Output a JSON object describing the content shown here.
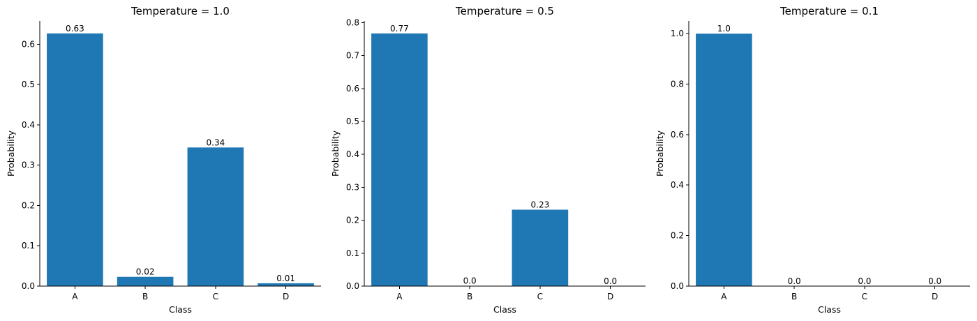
{
  "chart_data": [
    {
      "type": "bar",
      "title": "Temperature = 1.0",
      "xlabel": "Class",
      "ylabel": "Probability",
      "categories": [
        "A",
        "B",
        "C",
        "D"
      ],
      "values": [
        0.627,
        0.023,
        0.344,
        0.007
      ],
      "value_labels": [
        "0.63",
        "0.02",
        "0.34",
        "0.01"
      ],
      "yticks": [
        0.0,
        0.1,
        0.2,
        0.3,
        0.4,
        0.5,
        0.6
      ],
      "ytick_labels": [
        "0.0",
        "0.1",
        "0.2",
        "0.3",
        "0.4",
        "0.5",
        "0.6"
      ],
      "ylim": [
        0,
        0.658
      ],
      "bar_color": "#1f77b4",
      "grid": false,
      "legend": "none"
    },
    {
      "type": "bar",
      "title": "Temperature = 0.5",
      "xlabel": "Class",
      "ylabel": "Probability",
      "categories": [
        "A",
        "B",
        "C",
        "D"
      ],
      "values": [
        0.767,
        0.001,
        0.232,
        0.0
      ],
      "value_labels": [
        "0.77",
        "0.0",
        "0.23",
        "0.0"
      ],
      "yticks": [
        0.0,
        0.1,
        0.2,
        0.3,
        0.4,
        0.5,
        0.6,
        0.7,
        0.8
      ],
      "ytick_labels": [
        "0.0",
        "0.1",
        "0.2",
        "0.3",
        "0.4",
        "0.5",
        "0.6",
        "0.7",
        "0.8"
      ],
      "ylim": [
        0,
        0.805
      ],
      "bar_color": "#1f77b4",
      "grid": false,
      "legend": "none"
    },
    {
      "type": "bar",
      "title": "Temperature = 0.1",
      "xlabel": "Class",
      "ylabel": "Probability",
      "categories": [
        "A",
        "B",
        "C",
        "D"
      ],
      "values": [
        0.9996,
        0.0,
        0.0004,
        0.0
      ],
      "value_labels": [
        "1.0",
        "0.0",
        "0.0",
        "0.0"
      ],
      "yticks": [
        0.0,
        0.2,
        0.4,
        0.6,
        0.8,
        1.0
      ],
      "ytick_labels": [
        "0.0",
        "0.2",
        "0.4",
        "0.6",
        "0.8",
        "1.0"
      ],
      "ylim": [
        0,
        1.05
      ],
      "bar_color": "#1f77b4",
      "grid": false,
      "legend": "none"
    }
  ]
}
